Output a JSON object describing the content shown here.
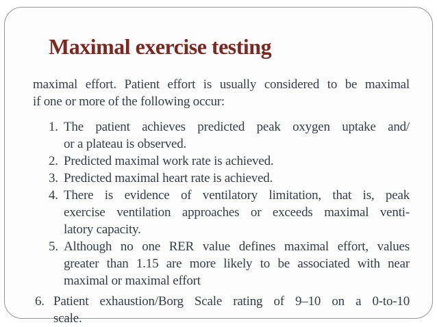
{
  "slide": {
    "title": "Maximal exercise testing",
    "intro": {
      "lines": [
        "maximal effort. Patient effort is usually considered to be maximal",
        "if one or more of the following occur:"
      ]
    },
    "criteria": [
      {
        "number": "1.",
        "lines": [
          "The patient achieves predicted peak oxygen uptake and/",
          "or a plateau is observed."
        ]
      },
      {
        "number": "2.",
        "lines": [
          "Predicted maximal work rate is achieved."
        ]
      },
      {
        "number": "3.",
        "lines": [
          "Predicted maximal heart rate is achieved."
        ]
      },
      {
        "number": "4.",
        "lines": [
          "There is evidence of ventilatory limitation, that is, peak",
          "exercise ventilation approaches or exceeds maximal venti-",
          "latory capacity."
        ]
      },
      {
        "number": "5.",
        "lines": [
          "Although no one RER value defines maximal effort, values",
          "greater than 1.15 are more likely to be associated with near",
          "maximal or maximal effort"
        ]
      },
      {
        "number": "6.",
        "outdent": true,
        "lines": [
          "Patient exhaustion/Borg Scale rating of 9–10 on a 0-to-10",
          "scale."
        ]
      }
    ],
    "colors": {
      "title_text": "#7c2820",
      "body_text": "#363d46",
      "frame_border": "#90959a",
      "background": "#fdfdfd"
    }
  }
}
